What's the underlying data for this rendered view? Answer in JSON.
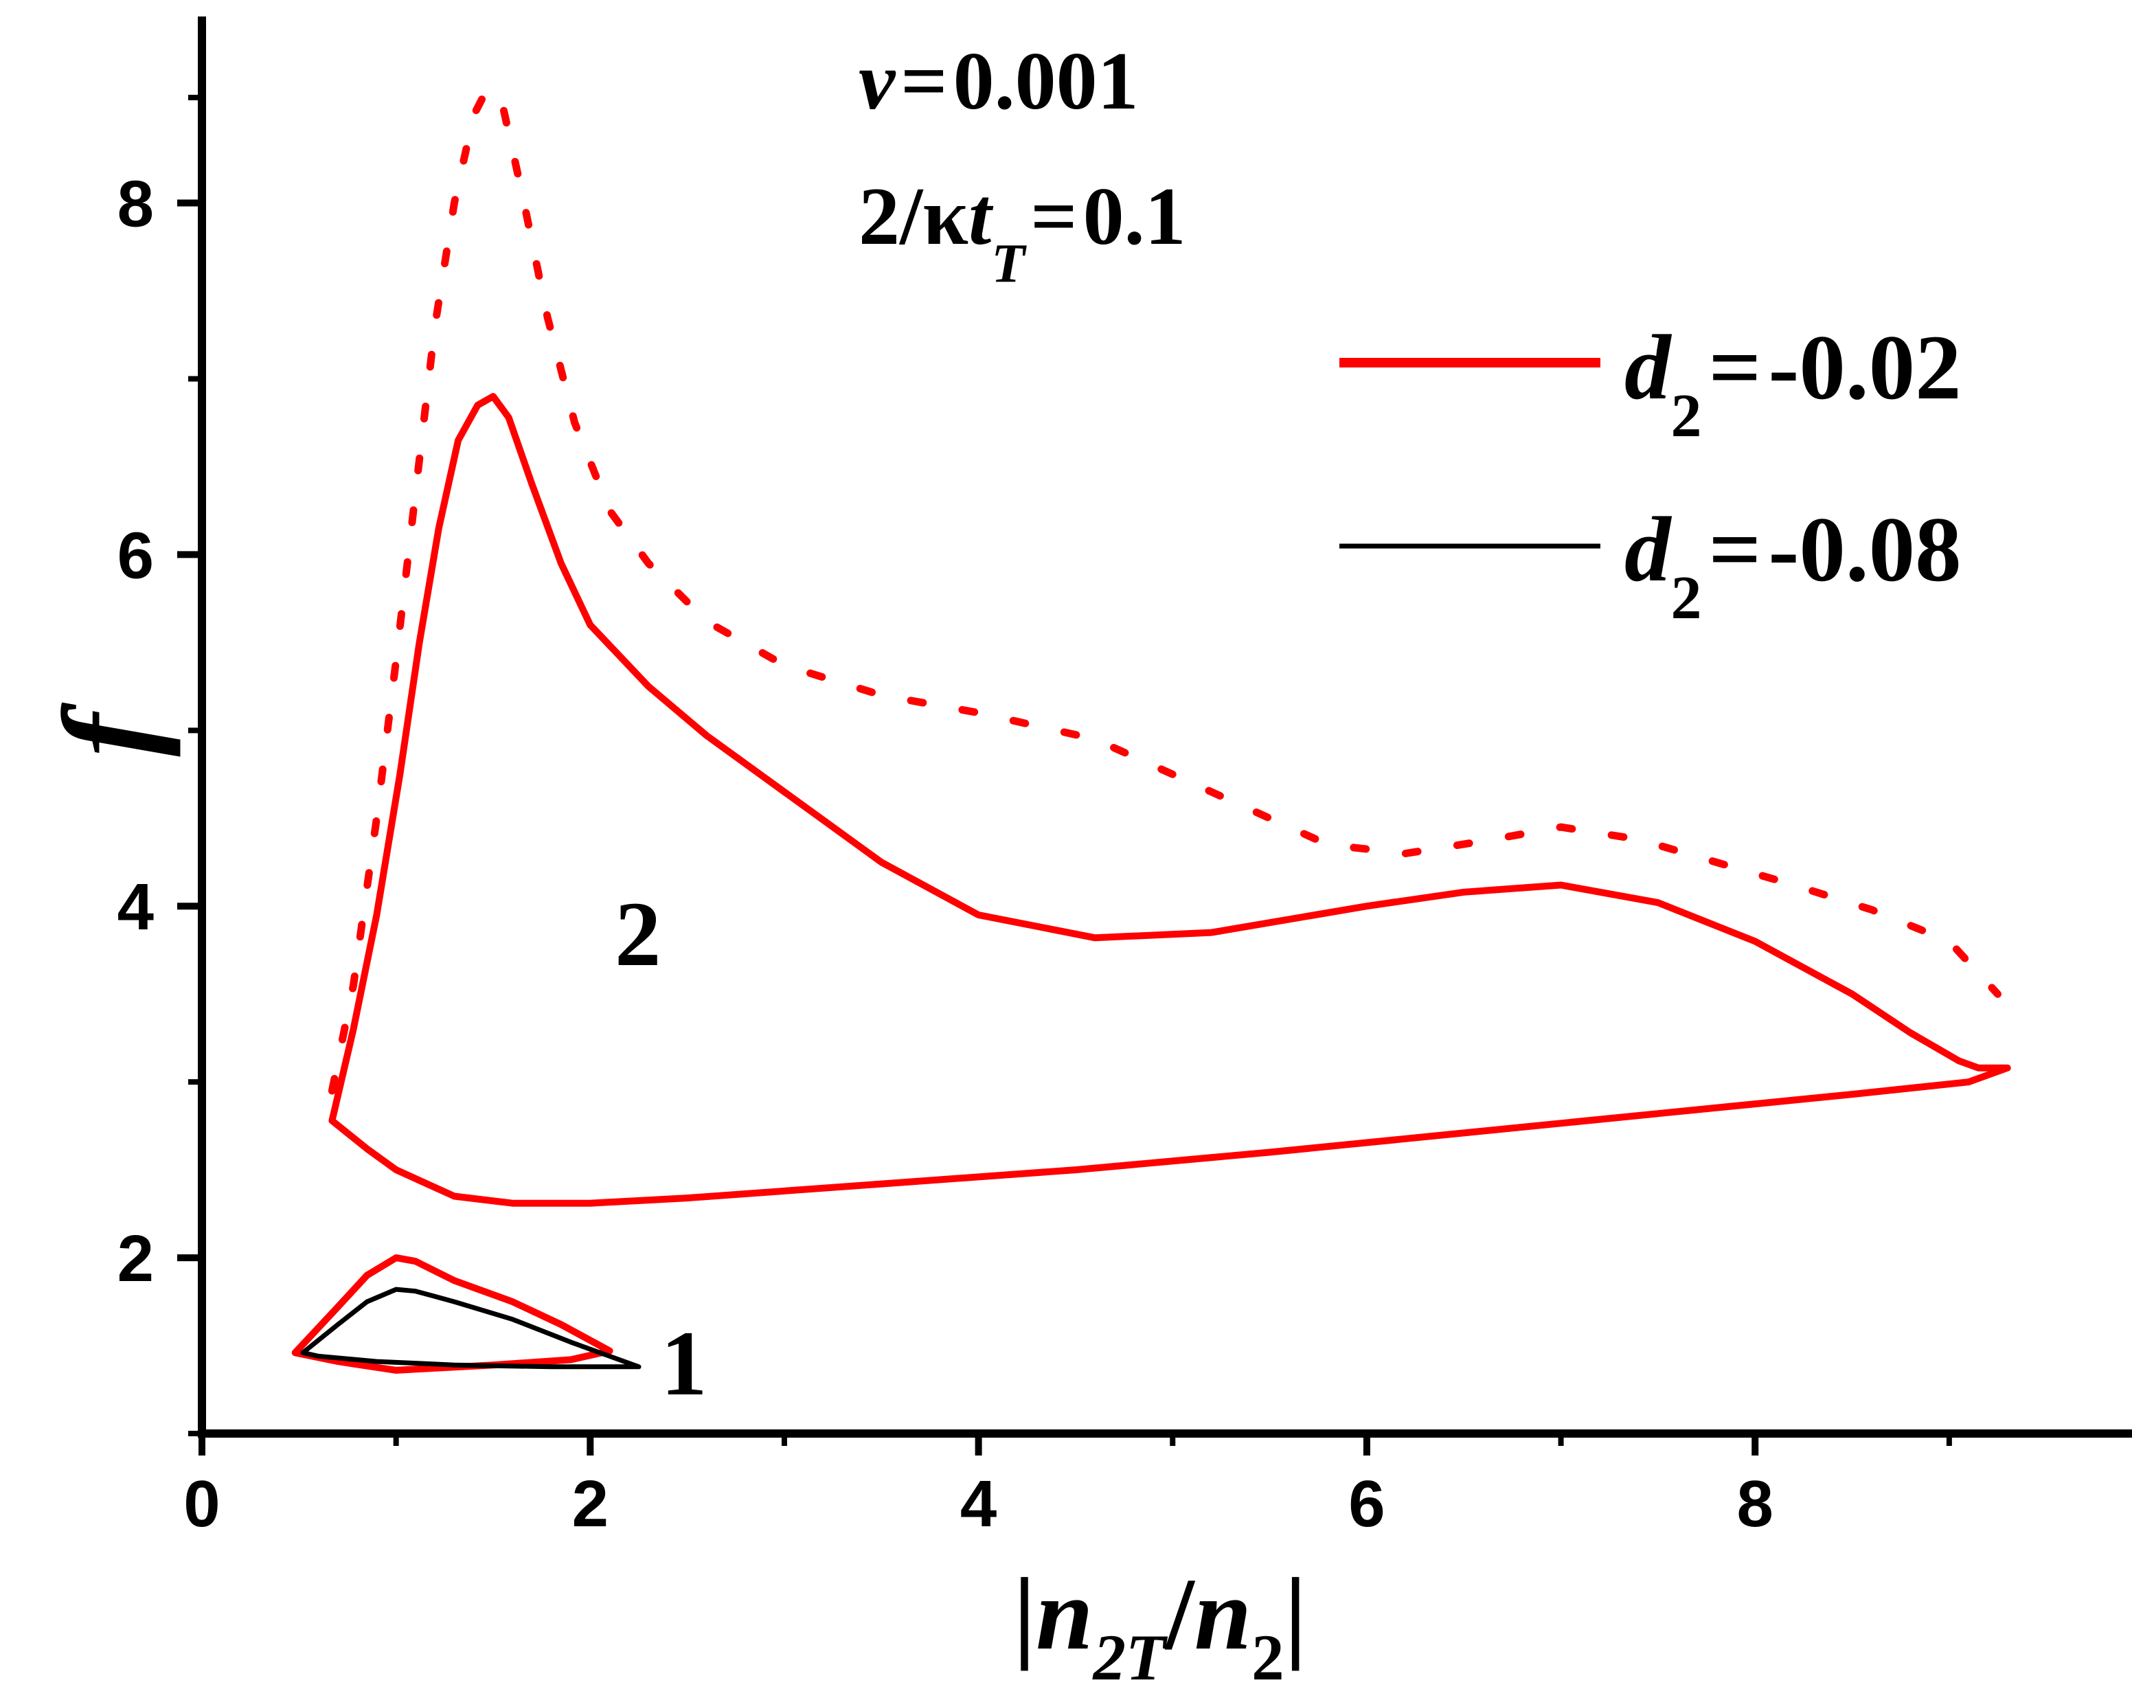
{
  "chart_data": {
    "type": "line",
    "xlim": [
      0,
      9.8
    ],
    "ylim": [
      1,
      8.6
    ],
    "x_ticks": [
      0,
      2,
      4,
      6,
      8
    ],
    "x_tick_labels": [
      "0",
      "2",
      "4",
      "6",
      "8"
    ],
    "y_ticks": [
      2,
      4,
      6,
      8
    ],
    "y_tick_labels": [
      "2",
      "4",
      "6",
      "8"
    ],
    "y_minor_ticks": [
      1,
      3,
      5,
      7,
      8.6
    ],
    "grid": false,
    "legend_placement": "top-right",
    "colors": {
      "red": "#ff0000",
      "black": "#000000"
    },
    "annotations": {
      "nu": {
        "sym": "ν",
        "eq": "=",
        "val": "0.001"
      },
      "kt": {
        "pre": "2/κ",
        "t": "t",
        "sub": "T",
        "eq": "=",
        "val": "0.1"
      },
      "label_curve_2": "2",
      "label_curve_1": "1"
    },
    "axis_labels": {
      "y": "f",
      "x": {
        "bar_left": "|",
        "n1": "n",
        "sub1": "2T",
        "slash": "/",
        "n2": "n",
        "sub2": "2",
        "bar_right": "|"
      }
    },
    "legend": [
      {
        "sym": "d",
        "sub": "2",
        "eq": "=",
        "val": "-0.02",
        "color": "#ff0000"
      },
      {
        "sym": "d",
        "sub": "2",
        "eq": "=",
        "val": "-0.08",
        "color": "#000000"
      }
    ],
    "series": [
      {
        "name": "d2=-0.02",
        "group": "2",
        "style": "solid",
        "color": "#ff0000",
        "points": [
          [
            0.67,
            2.78
          ],
          [
            0.78,
            3.3
          ],
          [
            0.9,
            3.95
          ],
          [
            1.02,
            4.75
          ],
          [
            1.12,
            5.5
          ],
          [
            1.22,
            6.15
          ],
          [
            1.32,
            6.65
          ],
          [
            1.42,
            6.85
          ],
          [
            1.5,
            6.9
          ],
          [
            1.58,
            6.78
          ],
          [
            1.7,
            6.4
          ],
          [
            1.85,
            5.95
          ],
          [
            2.0,
            5.6
          ],
          [
            2.3,
            5.25
          ],
          [
            2.6,
            4.97
          ],
          [
            3.0,
            4.65
          ],
          [
            3.5,
            4.25
          ],
          [
            4.0,
            3.95
          ],
          [
            4.6,
            3.82
          ],
          [
            5.2,
            3.85
          ],
          [
            6.0,
            4.0
          ],
          [
            6.5,
            4.08
          ],
          [
            7.0,
            4.12
          ],
          [
            7.5,
            4.02
          ],
          [
            8.0,
            3.8
          ],
          [
            8.5,
            3.5
          ],
          [
            8.8,
            3.28
          ],
          [
            9.05,
            3.12
          ],
          [
            9.15,
            3.08
          ],
          [
            9.3,
            3.08
          ],
          [
            9.1,
            3.0
          ],
          [
            8.5,
            2.93
          ],
          [
            7.5,
            2.82
          ],
          [
            6.5,
            2.71
          ],
          [
            5.5,
            2.6
          ],
          [
            4.5,
            2.5
          ],
          [
            3.5,
            2.42
          ],
          [
            2.5,
            2.34
          ],
          [
            2.0,
            2.31
          ],
          [
            1.6,
            2.31
          ],
          [
            1.3,
            2.35
          ],
          [
            1.0,
            2.5
          ],
          [
            0.85,
            2.62
          ],
          [
            0.67,
            2.78
          ]
        ]
      },
      {
        "name": "d2=-0.02 (dotted)",
        "group": "2",
        "style": "dotted",
        "color": "#ff0000",
        "points": [
          [
            0.67,
            2.95
          ],
          [
            0.78,
            3.55
          ],
          [
            0.9,
            4.5
          ],
          [
            1.0,
            5.4
          ],
          [
            1.1,
            6.35
          ],
          [
            1.2,
            7.3
          ],
          [
            1.3,
            8.0
          ],
          [
            1.4,
            8.5
          ],
          [
            1.47,
            8.65
          ],
          [
            1.55,
            8.55
          ],
          [
            1.65,
            8.05
          ],
          [
            1.78,
            7.35
          ],
          [
            1.92,
            6.75
          ],
          [
            2.1,
            6.25
          ],
          [
            2.3,
            5.95
          ],
          [
            2.6,
            5.62
          ],
          [
            3.0,
            5.37
          ],
          [
            3.5,
            5.2
          ],
          [
            4.0,
            5.1
          ],
          [
            4.6,
            4.95
          ],
          [
            5.2,
            4.65
          ],
          [
            5.8,
            4.35
          ],
          [
            6.2,
            4.3
          ],
          [
            6.6,
            4.37
          ],
          [
            7.0,
            4.45
          ],
          [
            7.4,
            4.38
          ],
          [
            7.8,
            4.25
          ],
          [
            8.2,
            4.12
          ],
          [
            8.6,
            3.98
          ],
          [
            9.0,
            3.8
          ],
          [
            9.25,
            3.5
          ]
        ]
      },
      {
        "name": "d2=-0.02",
        "group": "1",
        "style": "solid",
        "color": "#ff0000",
        "points": [
          [
            0.48,
            1.46
          ],
          [
            0.7,
            1.72
          ],
          [
            0.85,
            1.9
          ],
          [
            1.0,
            2.0
          ],
          [
            1.1,
            1.98
          ],
          [
            1.3,
            1.87
          ],
          [
            1.6,
            1.75
          ],
          [
            1.85,
            1.62
          ],
          [
            2.1,
            1.47
          ],
          [
            1.9,
            1.42
          ],
          [
            1.5,
            1.39
          ],
          [
            1.0,
            1.36
          ],
          [
            0.7,
            1.41
          ],
          [
            0.48,
            1.46
          ]
        ]
      },
      {
        "name": "d2=-0.08",
        "group": "1",
        "style": "solid",
        "color": "#000000",
        "points": [
          [
            0.52,
            1.46
          ],
          [
            0.7,
            1.62
          ],
          [
            0.85,
            1.75
          ],
          [
            1.0,
            1.82
          ],
          [
            1.1,
            1.81
          ],
          [
            1.3,
            1.75
          ],
          [
            1.6,
            1.65
          ],
          [
            1.9,
            1.52
          ],
          [
            2.25,
            1.38
          ],
          [
            1.8,
            1.38
          ],
          [
            1.3,
            1.39
          ],
          [
            0.9,
            1.41
          ],
          [
            0.6,
            1.44
          ],
          [
            0.52,
            1.46
          ]
        ]
      }
    ]
  }
}
